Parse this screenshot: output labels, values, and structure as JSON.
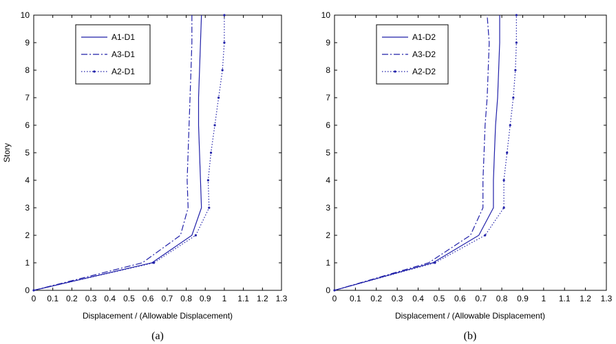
{
  "chart_data": [
    {
      "type": "line",
      "panel_caption": "(a)",
      "xlabel": "Displacement / (Allowable Displacement)",
      "ylabel": "Story",
      "xlim": [
        0,
        1.3
      ],
      "ylim": [
        0,
        10
      ],
      "xticks": [
        "0",
        "0.1",
        "0.2",
        "0.3",
        "0.4",
        "0.5",
        "0.6",
        "0.7",
        "0.8",
        "0.9",
        "1",
        "1.1",
        "1.2",
        "1.3"
      ],
      "yticks": [
        "0",
        "1",
        "2",
        "3",
        "4",
        "5",
        "6",
        "7",
        "8",
        "9",
        "10"
      ],
      "grid": false,
      "legend_position": "top-left",
      "series": [
        {
          "name": "A1-D1",
          "style": "solid",
          "color": "#1f1fa8",
          "x": [
            0,
            0.62,
            0.83,
            0.88,
            0.875,
            0.87,
            0.865,
            0.865,
            0.87,
            0.875,
            0.88
          ],
          "y": [
            0,
            1,
            2,
            3,
            4,
            5,
            6,
            7,
            8,
            9,
            10
          ]
        },
        {
          "name": "A3-D1",
          "style": "dashdot",
          "color": "#1f1fa8",
          "x": [
            0,
            0.57,
            0.77,
            0.81,
            0.805,
            0.81,
            0.815,
            0.82,
            0.825,
            0.83,
            0.83
          ],
          "y": [
            0,
            1,
            2,
            3,
            4,
            5,
            6,
            7,
            8,
            9,
            10
          ]
        },
        {
          "name": "A2-D1",
          "style": "dotted",
          "color": "#1f1fa8",
          "x": [
            0,
            0.63,
            0.85,
            0.92,
            0.915,
            0.93,
            0.95,
            0.97,
            0.99,
            1.0,
            1.0
          ],
          "y": [
            0,
            1,
            2,
            3,
            4,
            5,
            6,
            7,
            8,
            9,
            10
          ]
        }
      ]
    },
    {
      "type": "line",
      "panel_caption": "(b)",
      "xlabel": "Displacement / (Allowable Displacement)",
      "ylabel": "",
      "xlim": [
        0,
        1.3
      ],
      "ylim": [
        0,
        10
      ],
      "xticks": [
        "0",
        "0.1",
        "0.2",
        "0.3",
        "0.4",
        "0.5",
        "0.6",
        "0.7",
        "0.8",
        "0.9",
        "1",
        "1.1",
        "1.2",
        "1.3"
      ],
      "yticks": [
        "0",
        "1",
        "2",
        "3",
        "4",
        "5",
        "6",
        "7",
        "8",
        "9",
        "10"
      ],
      "grid": false,
      "legend_position": "top-left",
      "series": [
        {
          "name": "A1-D2",
          "style": "solid",
          "color": "#1f1fa8",
          "x": [
            0,
            0.47,
            0.69,
            0.76,
            0.76,
            0.765,
            0.77,
            0.78,
            0.785,
            0.79,
            0.79
          ],
          "y": [
            0,
            1,
            2,
            3,
            4,
            5,
            6,
            7,
            8,
            9,
            10
          ]
        },
        {
          "name": "A3-D2",
          "style": "dashdot",
          "color": "#1f1fa8",
          "x": [
            0,
            0.45,
            0.65,
            0.71,
            0.71,
            0.715,
            0.72,
            0.73,
            0.735,
            0.74,
            0.73
          ],
          "y": [
            0,
            1,
            2,
            3,
            4,
            5,
            6,
            7,
            8,
            9,
            10
          ]
        },
        {
          "name": "A2-D2",
          "style": "dotted",
          "color": "#1f1fa8",
          "x": [
            0,
            0.48,
            0.72,
            0.81,
            0.81,
            0.825,
            0.84,
            0.855,
            0.865,
            0.87,
            0.87
          ],
          "y": [
            0,
            1,
            2,
            3,
            4,
            5,
            6,
            7,
            8,
            9,
            10
          ]
        }
      ]
    }
  ]
}
